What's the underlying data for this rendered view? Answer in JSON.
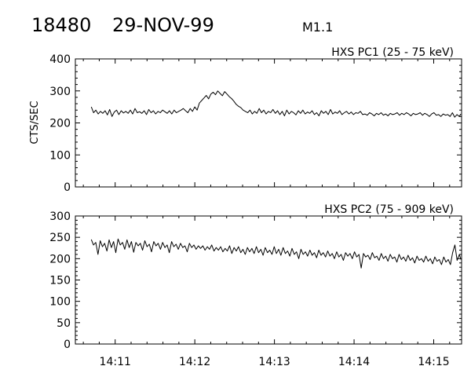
{
  "header": {
    "event_id": "18480",
    "date": "29-NOV-99",
    "flare_class": "M1.1"
  },
  "chart_data": [
    {
      "type": "line",
      "title": "HXS PC1 (25 - 75 keV)",
      "ylabel": "CTS/SEC",
      "ylim": [
        0,
        400
      ],
      "yticks": [
        0,
        100,
        200,
        300,
        400
      ],
      "xlim": [
        "14:10.5",
        "14:15.35"
      ],
      "xticks": [
        "14:11",
        "14:12",
        "14:13",
        "14:14",
        "14:15"
      ],
      "series": [
        {
          "x_start_min": 10.7,
          "x_end_min": 15.35,
          "values": [
            250,
            232,
            240,
            228,
            236,
            230,
            238,
            225,
            242,
            220,
            234,
            240,
            226,
            238,
            231,
            236,
            230,
            240,
            228,
            245,
            232,
            235,
            230,
            238,
            226,
            242,
            232,
            238,
            228,
            236,
            232,
            240,
            235,
            230,
            238,
            228,
            240,
            232,
            236,
            240,
            245,
            238,
            232,
            245,
            236,
            250,
            240,
            262,
            270,
            278,
            286,
            275,
            290,
            296,
            288,
            300,
            292,
            285,
            298,
            290,
            282,
            276,
            268,
            258,
            252,
            248,
            240,
            236,
            232,
            240,
            228,
            236,
            230,
            245,
            232,
            240,
            228,
            236,
            232,
            242,
            230,
            238,
            226,
            236,
            222,
            240,
            228,
            236,
            232,
            225,
            238,
            230,
            240,
            228,
            234,
            230,
            238,
            226,
            232,
            222,
            238,
            230,
            236,
            226,
            242,
            228,
            234,
            230,
            238,
            226,
            232,
            236,
            228,
            234,
            226,
            232,
            230,
            236,
            226,
            228,
            224,
            232,
            228,
            222,
            230,
            226,
            232,
            224,
            228,
            222,
            230,
            226,
            228,
            232,
            224,
            230,
            226,
            232,
            228,
            222,
            230,
            226,
            228,
            232,
            224,
            230,
            226,
            220,
            228,
            232,
            224,
            226,
            220,
            228,
            224,
            226,
            220,
            232,
            218,
            226,
            220,
            228
          ]
        }
      ]
    },
    {
      "type": "line",
      "title": "HXS PC2 (75 - 909 keV)",
      "ylabel": "",
      "ylim": [
        0,
        300
      ],
      "yticks": [
        0,
        50,
        100,
        150,
        200,
        250,
        300
      ],
      "xlim": [
        "14:10.5",
        "14:15.35"
      ],
      "xticks": [
        "14:11",
        "14:12",
        "14:13",
        "14:14",
        "14:15"
      ],
      "series": [
        {
          "x_start_min": 10.7,
          "x_end_min": 15.35,
          "values": [
            245,
            232,
            238,
            210,
            242,
            228,
            236,
            218,
            244,
            226,
            240,
            214,
            246,
            232,
            238,
            222,
            244,
            226,
            240,
            215,
            238,
            230,
            236,
            220,
            242,
            228,
            234,
            216,
            240,
            230,
            236,
            222,
            238,
            226,
            232,
            214,
            240,
            228,
            234,
            222,
            236,
            226,
            230,
            216,
            236,
            226,
            232,
            222,
            230,
            224,
            230,
            220,
            228,
            222,
            232,
            218,
            226,
            220,
            228,
            216,
            224,
            218,
            230,
            212,
            226,
            218,
            228,
            214,
            222,
            210,
            226,
            216,
            224,
            212,
            228,
            214,
            222,
            208,
            226,
            214,
            220,
            210,
            228,
            212,
            222,
            208,
            226,
            212,
            218,
            206,
            224,
            210,
            216,
            200,
            222,
            210,
            216,
            206,
            220,
            208,
            214,
            202,
            220,
            208,
            214,
            204,
            218,
            206,
            212,
            200,
            216,
            204,
            210,
            196,
            214,
            206,
            212,
            200,
            216,
            204,
            210,
            178,
            212,
            204,
            208,
            198,
            214,
            202,
            206,
            196,
            212,
            200,
            206,
            194,
            210,
            200,
            204,
            192,
            210,
            198,
            204,
            194,
            208,
            196,
            202,
            190,
            206,
            196,
            200,
            192,
            206,
            194,
            200,
            188,
            204,
            194,
            198,
            186,
            204,
            192,
            198,
            186,
            214,
            232,
            196,
            210,
            198
          ]
        }
      ]
    }
  ]
}
